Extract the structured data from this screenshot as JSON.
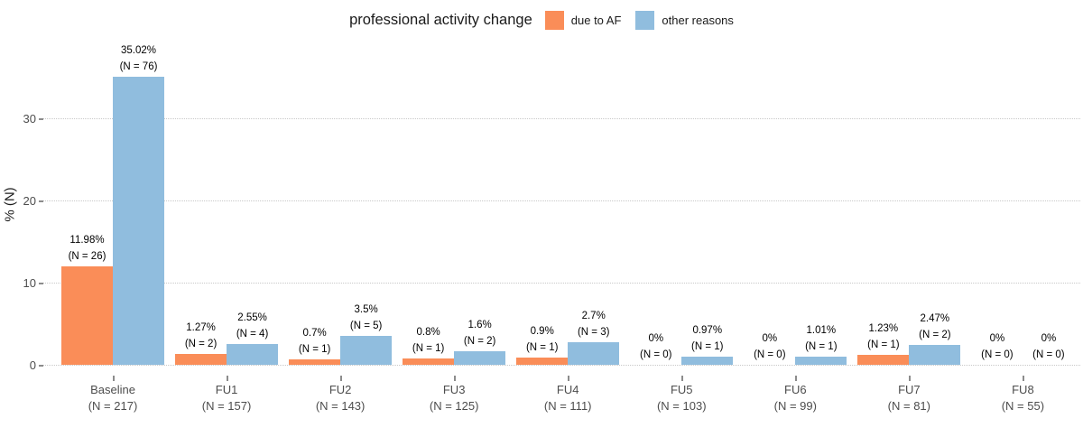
{
  "chart_data": {
    "type": "bar",
    "legend_title": "professional activity change",
    "ylabel": "% (N)",
    "yticks": [
      0,
      10,
      20,
      30
    ],
    "ylim": [
      0,
      36
    ],
    "grid": "horizontal-dotted",
    "legend_position": "top-center",
    "categories": [
      {
        "label": "Baseline",
        "sublabel": "(N = 217)"
      },
      {
        "label": "FU1",
        "sublabel": "(N = 157)"
      },
      {
        "label": "FU2",
        "sublabel": "(N = 143)"
      },
      {
        "label": "FU3",
        "sublabel": "(N = 125)"
      },
      {
        "label": "FU4",
        "sublabel": "(N = 111)"
      },
      {
        "label": "FU5",
        "sublabel": "(N = 103)"
      },
      {
        "label": "FU6",
        "sublabel": "(N = 99)"
      },
      {
        "label": "FU7",
        "sublabel": "(N = 81)"
      },
      {
        "label": "FU8",
        "sublabel": "(N = 55)"
      }
    ],
    "series": [
      {
        "name": "due to AF",
        "color": "#FA8D58",
        "values": [
          11.98,
          1.27,
          0.7,
          0.8,
          0.9,
          0,
          0,
          1.23,
          0
        ],
        "pct_labels": [
          "11.98%",
          "1.27%",
          "0.7%",
          "0.8%",
          "0.9%",
          "0%",
          "0%",
          "1.23%",
          "0%"
        ],
        "n_labels": [
          "(N = 26)",
          "(N = 2)",
          "(N = 1)",
          "(N = 1)",
          "(N = 1)",
          "(N = 0)",
          "(N = 0)",
          "(N = 1)",
          "(N = 0)"
        ]
      },
      {
        "name": "other reasons",
        "color": "#90BDDE",
        "values": [
          35.02,
          2.55,
          3.5,
          1.6,
          2.7,
          0.97,
          1.01,
          2.47,
          0
        ],
        "pct_labels": [
          "35.02%",
          "2.55%",
          "3.5%",
          "1.6%",
          "2.7%",
          "0.97%",
          "1.01%",
          "2.47%",
          "0%"
        ],
        "n_labels": [
          "(N = 76)",
          "(N = 4)",
          "(N = 5)",
          "(N = 2)",
          "(N = 3)",
          "(N = 1)",
          "(N = 1)",
          "(N = 2)",
          "(N = 0)"
        ]
      }
    ],
    "colors": {
      "grid": "#c9c9c9",
      "axis_text": "#4d4d4d",
      "annotation_text": "#000000"
    }
  }
}
